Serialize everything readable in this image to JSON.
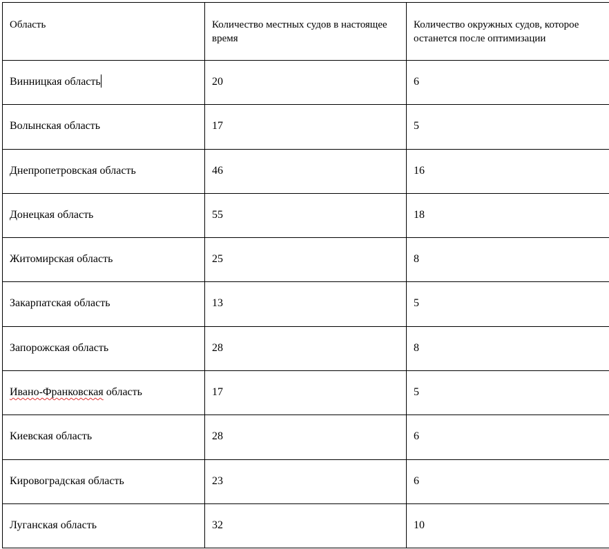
{
  "table": {
    "headers": [
      "Область",
      "Количество местных судов в настоящее время",
      "Количество окружных судов, которое останется после оптимизации"
    ],
    "rows": [
      [
        "Винницкая область",
        "20",
        "6"
      ],
      [
        "Волынская область",
        "17",
        "5"
      ],
      [
        "Днепропетровская область",
        "46",
        "16"
      ],
      [
        "Донецкая область",
        "55",
        "18"
      ],
      [
        "Житомирская область",
        "25",
        "8"
      ],
      [
        "Закарпатская область",
        "13",
        "5"
      ],
      [
        "Запорожская область",
        "28",
        "8"
      ],
      [
        "Ивано-Франковская область",
        "17",
        "5"
      ],
      [
        "Киевская область",
        "28",
        "6"
      ],
      [
        "Кировоградская область",
        "23",
        "6"
      ],
      [
        "Луганская область",
        "32",
        "10"
      ]
    ],
    "spellcheck_word": "Ивано-Франковская",
    "spellcheck_rest": " область"
  }
}
